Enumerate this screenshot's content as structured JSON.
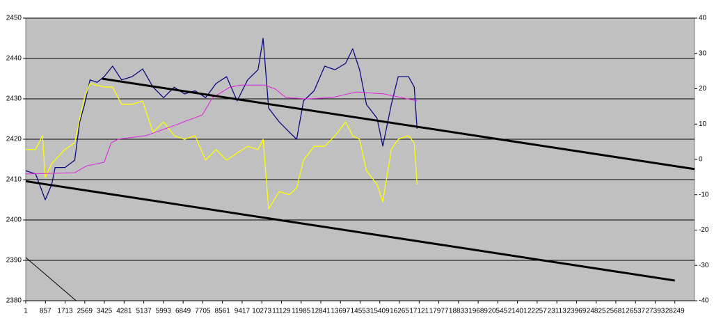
{
  "chart_data": {
    "type": "line",
    "plot_background": "#c0c0c0",
    "grid": true,
    "xlim": [
      1,
      29105
    ],
    "xticks": [
      1,
      857,
      1713,
      2569,
      3425,
      4281,
      5137,
      5993,
      6849,
      7705,
      8561,
      9417,
      10273,
      11129,
      11985,
      12841,
      13697,
      14553,
      15409,
      16265,
      17121,
      17977,
      18833,
      19689,
      20545,
      21401,
      22257,
      23113,
      23969,
      24825,
      25681,
      26537,
      27393,
      28249
    ],
    "ylim": [
      2380,
      2450
    ],
    "yticks": [
      2380,
      2390,
      2400,
      2410,
      2420,
      2430,
      2440,
      2450
    ],
    "y2lim": [
      -40,
      40
    ],
    "y2ticks": [
      -40,
      -30,
      -20,
      -10,
      0,
      10,
      20,
      30,
      40
    ],
    "series": [
      {
        "color": "#0a0a80",
        "axis": "y",
        "line_width": 1.3,
        "x": [
          1,
          430,
          850,
          1130,
          1280,
          1710,
          2130,
          2350,
          2560,
          2800,
          3110,
          3410,
          3780,
          4170,
          4630,
          5090,
          5540,
          6000,
          6460,
          6910,
          7370,
          7830,
          8280,
          8740,
          9200,
          9660,
          10110,
          10330,
          10570,
          11030,
          11480,
          11790,
          12090,
          12550,
          13010,
          13460,
          13920,
          14230,
          14530,
          14830,
          15290,
          15540,
          15910,
          16210,
          16660,
          16910,
          17030
        ],
        "values": [
          2412.2,
          2411.4,
          2405,
          2408.8,
          2413,
          2413,
          2414.8,
          2424.3,
          2428.6,
          2434.7,
          2434.1,
          2435.5,
          2438.1,
          2434.7,
          2435.5,
          2437.4,
          2432.9,
          2430.3,
          2432.9,
          2431.2,
          2432,
          2430.3,
          2433.8,
          2435.5,
          2429.5,
          2434.7,
          2437.2,
          2445,
          2427.7,
          2424.3,
          2421.7,
          2420,
          2429.5,
          2432,
          2438.1,
          2437.2,
          2438.8,
          2442.4,
          2437.2,
          2428.6,
          2425.2,
          2418.3,
          2428.6,
          2435.5,
          2435.5,
          2432.9,
          2422.6
        ]
      },
      {
        "color": "#ffff00",
        "axis": "y2",
        "line_width": 1.3,
        "x": [
          1,
          430,
          730,
          850,
          1130,
          1710,
          2130,
          2350,
          2560,
          2800,
          3410,
          3780,
          4170,
          4630,
          5090,
          5540,
          6000,
          6460,
          6910,
          7370,
          7830,
          8280,
          8740,
          9200,
          9660,
          10110,
          10330,
          10570,
          11030,
          11480,
          11790,
          12090,
          12550,
          13010,
          13460,
          13920,
          14230,
          14530,
          14830,
          15290,
          15540,
          15910,
          16210,
          16660,
          16910,
          17030
        ],
        "values": [
          2.8,
          2.8,
          6.7,
          -5.1,
          -1.2,
          2.8,
          4.7,
          11.6,
          17.5,
          21.5,
          20.5,
          20.5,
          15.6,
          15.6,
          16.5,
          7.7,
          10.6,
          6.7,
          5.7,
          6.7,
          -0.2,
          2.8,
          -0.2,
          1.8,
          3.7,
          2.8,
          5.7,
          -14,
          -9.1,
          -10,
          -8.1,
          -0.2,
          3.7,
          3.7,
          6.7,
          10.6,
          6.7,
          5.7,
          -3.2,
          -7.1,
          -12,
          2.8,
          5.7,
          6.7,
          4.7,
          -7.1
        ]
      },
      {
        "color": "#e020e0",
        "axis": "y",
        "line_width": 1,
        "x": [
          1,
          2130,
          2650,
          3410,
          3720,
          4020,
          5240,
          6460,
          7680,
          8130,
          8890,
          9350,
          10420,
          10870,
          11330,
          12240,
          13310,
          14380,
          15600,
          17030
        ],
        "values": [
          2411.4,
          2411.7,
          2413.4,
          2414.3,
          2419.1,
          2420,
          2420.9,
          2423.4,
          2426,
          2430.3,
          2432.9,
          2433.4,
          2433.4,
          2432.4,
          2430.3,
          2430,
          2430.3,
          2431.7,
          2431.2,
          2429.5
        ]
      },
      {
        "color": "#000000",
        "axis": "y",
        "line_width": 3,
        "x": [
          3320,
          29105
        ],
        "values": [
          2435,
          2412.6
        ]
      },
      {
        "color": "#000000",
        "axis": "y",
        "line_width": 3,
        "x": [
          1,
          28249
        ],
        "values": [
          2409.6,
          2385
        ]
      },
      {
        "color": "#000000",
        "axis": "y",
        "line_width": 1,
        "x": [
          1,
          2194
        ],
        "values": [
          2390.7,
          2380
        ]
      }
    ]
  }
}
